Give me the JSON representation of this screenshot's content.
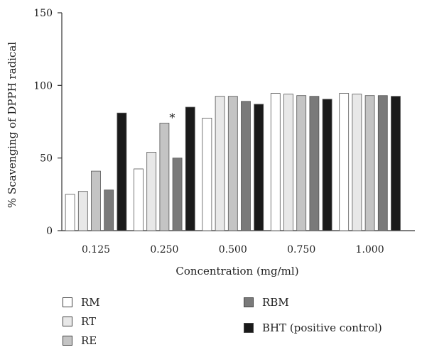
{
  "chart_data": {
    "type": "bar",
    "title": "",
    "xlabel": "Concentration (mg/ml)",
    "ylabel": "% Scavenging of DPPH radical",
    "ylim": [
      0,
      150
    ],
    "yticks": [
      "0",
      "50",
      "100",
      "150"
    ],
    "categories": [
      "0.125",
      "0.250",
      "0.500",
      "0.750",
      "1.000"
    ],
    "series": [
      {
        "name": "RM",
        "color": "#ffffff",
        "values": [
          25,
          42.5,
          77.5,
          94.5,
          94.5
        ]
      },
      {
        "name": "RT",
        "color": "#e8e8e8",
        "values": [
          27,
          54,
          92.5,
          94,
          94
        ]
      },
      {
        "name": "RE",
        "color": "#c4c4c4",
        "values": [
          41,
          74,
          92.5,
          93,
          93
        ]
      },
      {
        "name": "RBM",
        "color": "#7a7a7a",
        "values": [
          28,
          50,
          89,
          92.5,
          93
        ]
      },
      {
        "name": "BHT (positive control)",
        "color": "#1a1a1a",
        "values": [
          81,
          85,
          87,
          90.5,
          92.5
        ]
      }
    ],
    "annotations": [
      {
        "text": "*",
        "category": "0.250",
        "series": "RE"
      }
    ],
    "legend_position": "bottom",
    "grid": false
  }
}
